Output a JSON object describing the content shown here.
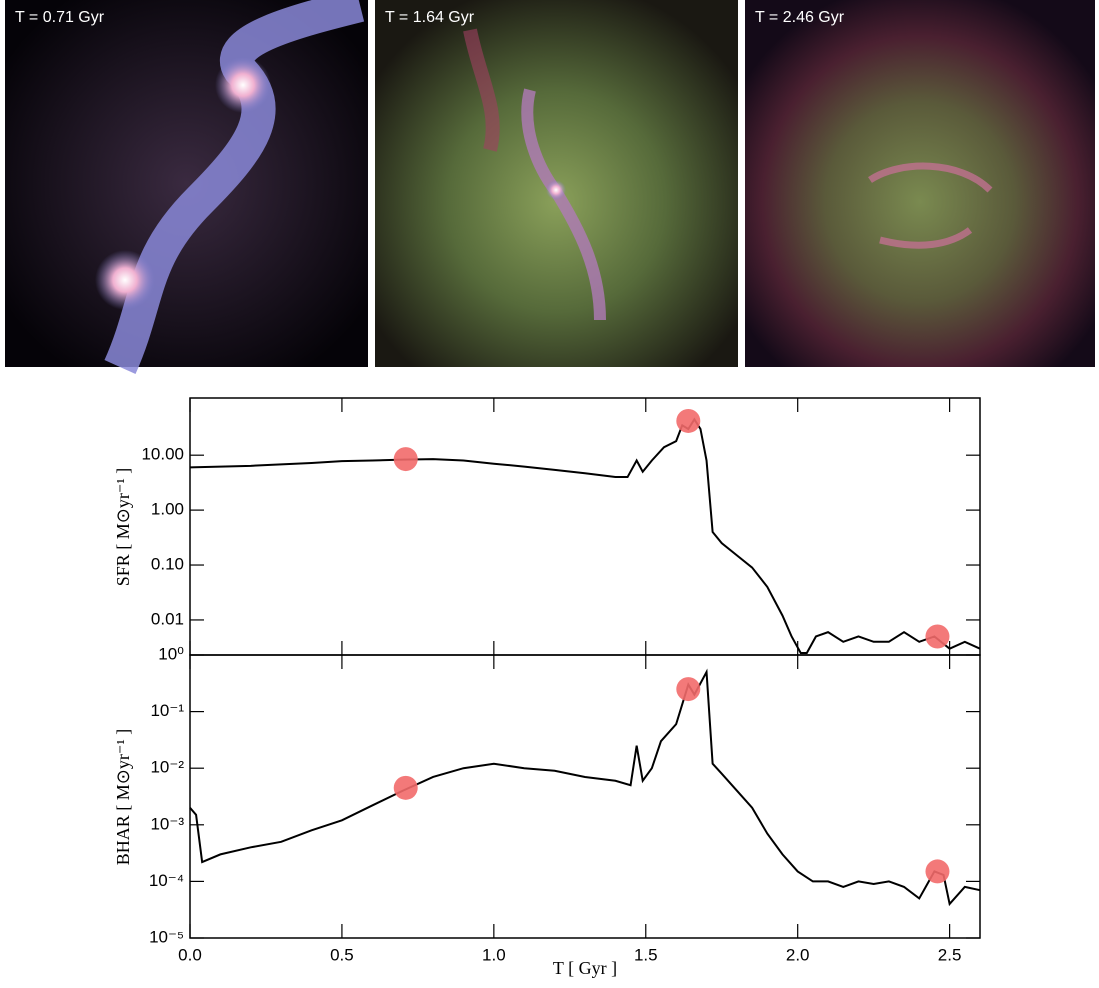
{
  "panels": [
    {
      "label": "T = 0.71 Gyr"
    },
    {
      "label": "T = 1.64 Gyr"
    },
    {
      "label": "T = 2.46 Gyr"
    }
  ],
  "chart_data": [
    {
      "type": "line",
      "ylabel": "SFR [ M⊙yr⁻¹ ]",
      "log_y": true,
      "xlim": [
        0,
        2.6
      ],
      "ylim": [
        0.0023,
        110
      ],
      "yticks": [
        {
          "value": 10,
          "label": "10.00"
        },
        {
          "value": 1,
          "label": "1.00"
        },
        {
          "value": 0.1,
          "label": "0.10"
        },
        {
          "value": 0.01,
          "label": "0.01"
        }
      ],
      "series": [
        {
          "color": "#000000",
          "x": [
            0,
            0.1,
            0.2,
            0.3,
            0.4,
            0.5,
            0.6,
            0.7,
            0.8,
            0.9,
            1.0,
            1.1,
            1.2,
            1.3,
            1.4,
            1.44,
            1.47,
            1.49,
            1.52,
            1.56,
            1.6,
            1.62,
            1.64,
            1.66,
            1.68,
            1.7,
            1.72,
            1.75,
            1.8,
            1.85,
            1.9,
            1.95,
            1.98,
            2.01,
            2.03,
            2.06,
            2.1,
            2.15,
            2.2,
            2.25,
            2.3,
            2.35,
            2.4,
            2.45,
            2.5,
            2.55,
            2.6
          ],
          "values": [
            6,
            6.2,
            6.4,
            6.8,
            7.2,
            7.8,
            8.0,
            8.3,
            8.5,
            8.0,
            7.0,
            6.2,
            5.4,
            4.7,
            4.0,
            4.0,
            8,
            5,
            8,
            14,
            18,
            35,
            30,
            45,
            30,
            8,
            0.4,
            0.25,
            0.15,
            0.09,
            0.04,
            0.012,
            0.005,
            0.0025,
            0.0025,
            0.005,
            0.006,
            0.004,
            0.005,
            0.004,
            0.004,
            0.006,
            0.004,
            0.005,
            0.003,
            0.004,
            0.003
          ]
        }
      ],
      "highlights": {
        "color": "#f26a6a",
        "x": [
          0.71,
          1.64,
          2.46
        ],
        "values": [
          8.5,
          42,
          0.005
        ]
      }
    },
    {
      "type": "line",
      "ylabel": "BHAR [ M⊙yr⁻¹ ]",
      "xlabel": "T [ Gyr ]",
      "log_y": true,
      "xlim": [
        0,
        2.6
      ],
      "ylim": [
        1e-05,
        1
      ],
      "xticks": [
        {
          "value": 0,
          "label": "0.0"
        },
        0.5,
        {
          "value": 1,
          "label": "1.0"
        },
        1.5,
        {
          "value": 2,
          "label": "2.0"
        },
        2.5
      ],
      "yticks": [
        {
          "value": 1,
          "label": "10⁰"
        },
        {
          "value": 0.1,
          "label": "10⁻¹"
        },
        {
          "value": 0.01,
          "label": "10⁻²"
        },
        {
          "value": 0.001,
          "label": "10⁻³"
        },
        {
          "value": 0.0001,
          "label": "10⁻⁴"
        },
        {
          "value": 1e-05,
          "label": "10⁻⁵"
        }
      ],
      "series": [
        {
          "color": "#000000",
          "x": [
            0,
            0.02,
            0.04,
            0.1,
            0.2,
            0.3,
            0.4,
            0.5,
            0.6,
            0.7,
            0.8,
            0.9,
            1.0,
            1.1,
            1.2,
            1.3,
            1.4,
            1.45,
            1.47,
            1.49,
            1.52,
            1.55,
            1.6,
            1.64,
            1.66,
            1.7,
            1.72,
            1.75,
            1.8,
            1.85,
            1.9,
            1.95,
            2.0,
            2.05,
            2.1,
            2.15,
            2.2,
            2.25,
            2.3,
            2.35,
            2.4,
            2.45,
            2.48,
            2.5,
            2.55,
            2.6
          ],
          "values": [
            0.002,
            0.0015,
            0.00022,
            0.0003,
            0.0004,
            0.0005,
            0.0008,
            0.0012,
            0.0022,
            0.004,
            0.007,
            0.01,
            0.012,
            0.01,
            0.009,
            0.007,
            0.006,
            0.005,
            0.025,
            0.006,
            0.01,
            0.03,
            0.06,
            0.3,
            0.2,
            0.5,
            0.012,
            0.008,
            0.004,
            0.002,
            0.0007,
            0.0003,
            0.00015,
            0.0001,
            0.0001,
            8e-05,
            0.0001,
            9e-05,
            0.0001,
            8e-05,
            5e-05,
            0.00015,
            0.00013,
            4e-05,
            8e-05,
            7e-05
          ]
        }
      ],
      "highlights": {
        "color": "#f26a6a",
        "x": [
          0.71,
          1.64,
          2.46
        ],
        "values": [
          0.0045,
          0.25,
          0.00015
        ]
      }
    }
  ]
}
